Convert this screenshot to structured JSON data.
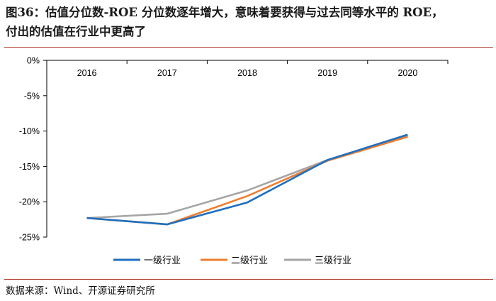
{
  "header": {
    "title_line1": "图36：估值分位数-ROE 分位数逐年增大，意味着要获得与过去同等水平的 ROE，",
    "title_line2": "付出的估值在行业中更高了"
  },
  "footer": {
    "source": "数据来源：Wind、开源证券研究所"
  },
  "colors": {
    "rule": "#b33a2b"
  },
  "chart_data": {
    "type": "line",
    "x": [
      "2016",
      "2017",
      "2018",
      "2019",
      "2020"
    ],
    "series": [
      {
        "name": "一级行业",
        "color": "#1f6fbf",
        "values": [
          -22.3,
          -23.2,
          -20.1,
          -14.1,
          -10.5
        ]
      },
      {
        "name": "二级行业",
        "color": "#ed7d31",
        "values": [
          -22.3,
          -23.2,
          -19.2,
          -14.2,
          -10.8
        ]
      },
      {
        "name": "三级行业",
        "color": "#a5a5a5",
        "values": [
          -22.3,
          -21.7,
          -18.4,
          -14.1,
          -10.7
        ]
      }
    ],
    "y_ticks": [
      "0%",
      "-5%",
      "-10%",
      "-15%",
      "-20%",
      "-25%"
    ],
    "ylim": [
      -25,
      0
    ],
    "legend": "bottom",
    "grid": false
  }
}
